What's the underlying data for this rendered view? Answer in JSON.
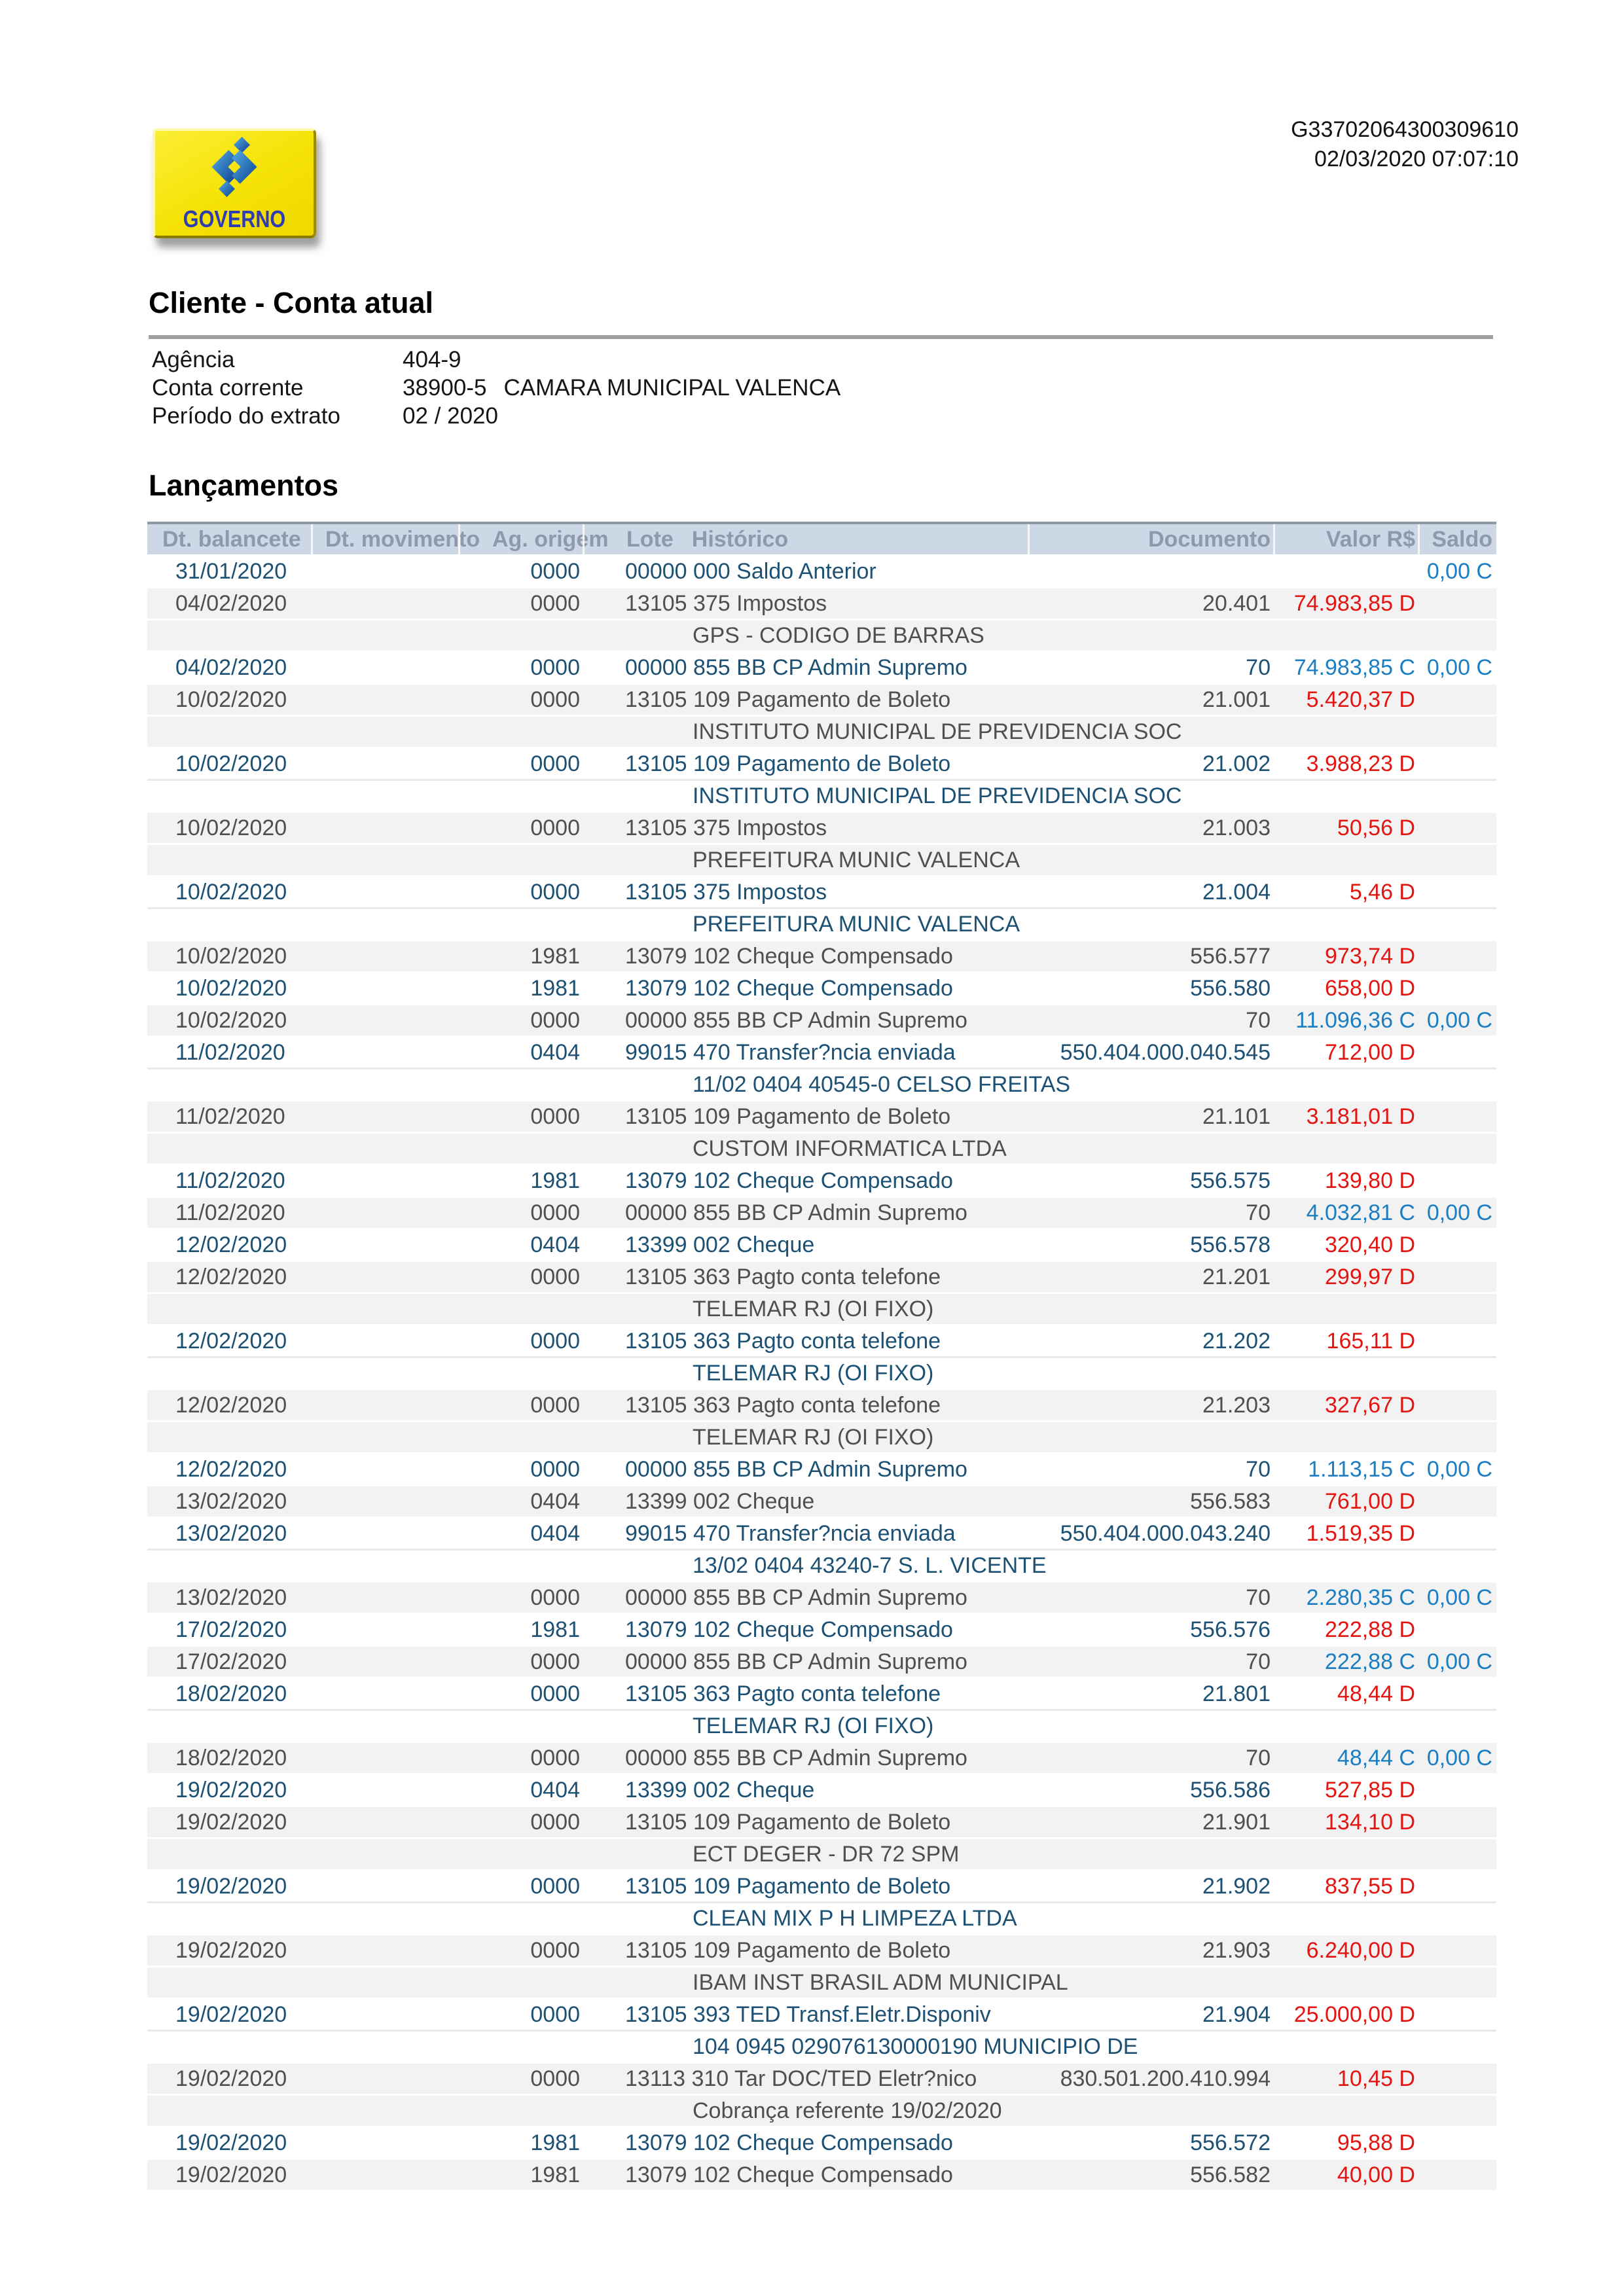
{
  "meta": {
    "protocol": "G33702064300309610",
    "datetime": "02/03/2020 07:07:10"
  },
  "logo": {
    "label": "GOVERNO",
    "box_color": "#f5e204",
    "mark_color_top": "#55aee8",
    "mark_color_bottom": "#0a3f8d",
    "label_color": "#2e3cb2"
  },
  "client": {
    "title": "Cliente - Conta atual",
    "fields": [
      {
        "label": "Agência",
        "value": "404-9"
      },
      {
        "label": "Conta corrente",
        "value": "38900-5",
        "extra": "CAMARA MUNICIPAL VALENCA"
      },
      {
        "label": "Período do extrato",
        "value": "02 / 2020"
      }
    ]
  },
  "sections": {
    "lancamentos": "Lançamentos"
  },
  "colors": {
    "header_bg": "#ccd8e5",
    "header_text": "#8c9aab",
    "row_alt_bg": "#f2f2f2",
    "row_white_text": "#1d5174",
    "row_gray_text": "#4d5052",
    "debit_red": "#e41511",
    "credit_blue": "#1b7ec2"
  },
  "table": {
    "headers": [
      "Dt. balancete",
      "Dt. movimento",
      "Ag. origem",
      "Lote",
      "Histórico",
      "Documento",
      "Valor R$",
      "Saldo"
    ],
    "rows": [
      {
        "type": "txn",
        "bg": "w",
        "dt": "31/01/2020",
        "ag": "0000",
        "hist": "00000 000 Saldo Anterior",
        "doc": "",
        "valor": "",
        "valor_suffix": "",
        "saldo": "0,00",
        "saldo_suffix": "C"
      },
      {
        "type": "txn",
        "bg": "g",
        "dt": "04/02/2020",
        "ag": "0000",
        "hist": "13105 375 Impostos",
        "doc": "20.401",
        "valor": "74.983,85",
        "valor_suffix": "D",
        "saldo": "",
        "saldo_suffix": ""
      },
      {
        "type": "desc",
        "bg": "g",
        "text": "GPS - CODIGO DE BARRAS"
      },
      {
        "type": "txn",
        "bg": "w",
        "dt": "04/02/2020",
        "ag": "0000",
        "hist": "00000 855 BB CP Admin Supremo",
        "doc": "70",
        "valor": "74.983,85",
        "valor_suffix": "C",
        "saldo": "0,00",
        "saldo_suffix": "C"
      },
      {
        "type": "txn",
        "bg": "g",
        "dt": "10/02/2020",
        "ag": "0000",
        "hist": "13105 109 Pagamento de Boleto",
        "doc": "21.001",
        "valor": "5.420,37",
        "valor_suffix": "D",
        "saldo": "",
        "saldo_suffix": ""
      },
      {
        "type": "desc",
        "bg": "g",
        "text": "INSTITUTO MUNICIPAL DE PREVIDENCIA SOC"
      },
      {
        "type": "txn",
        "bg": "w",
        "dt": "10/02/2020",
        "ag": "0000",
        "hist": "13105 109 Pagamento de Boleto",
        "doc": "21.002",
        "valor": "3.988,23",
        "valor_suffix": "D",
        "saldo": "",
        "saldo_suffix": ""
      },
      {
        "type": "desc",
        "bg": "w",
        "text": "INSTITUTO MUNICIPAL DE PREVIDENCIA SOC"
      },
      {
        "type": "txn",
        "bg": "g",
        "dt": "10/02/2020",
        "ag": "0000",
        "hist": "13105 375 Impostos",
        "doc": "21.003",
        "valor": "50,56",
        "valor_suffix": "D",
        "saldo": "",
        "saldo_suffix": ""
      },
      {
        "type": "desc",
        "bg": "g",
        "text": "PREFEITURA MUNIC VALENCA"
      },
      {
        "type": "txn",
        "bg": "w",
        "dt": "10/02/2020",
        "ag": "0000",
        "hist": "13105 375 Impostos",
        "doc": "21.004",
        "valor": "5,46",
        "valor_suffix": "D",
        "saldo": "",
        "saldo_suffix": ""
      },
      {
        "type": "desc",
        "bg": "w",
        "text": "PREFEITURA MUNIC VALENCA"
      },
      {
        "type": "txn",
        "bg": "g",
        "dt": "10/02/2020",
        "ag": "1981",
        "hist": "13079 102 Cheque Compensado",
        "doc": "556.577",
        "valor": "973,74",
        "valor_suffix": "D",
        "saldo": "",
        "saldo_suffix": ""
      },
      {
        "type": "txn",
        "bg": "w",
        "dt": "10/02/2020",
        "ag": "1981",
        "hist": "13079 102 Cheque Compensado",
        "doc": "556.580",
        "valor": "658,00",
        "valor_suffix": "D",
        "saldo": "",
        "saldo_suffix": ""
      },
      {
        "type": "txn",
        "bg": "g",
        "dt": "10/02/2020",
        "ag": "0000",
        "hist": "00000 855 BB CP Admin Supremo",
        "doc": "70",
        "valor": "11.096,36",
        "valor_suffix": "C",
        "saldo": "0,00",
        "saldo_suffix": "C"
      },
      {
        "type": "txn",
        "bg": "w",
        "dt": "11/02/2020",
        "ag": "0404",
        "hist": "99015 470 Transfer?ncia enviada",
        "doc": "550.404.000.040.545",
        "valor": "712,00",
        "valor_suffix": "D",
        "saldo": "",
        "saldo_suffix": ""
      },
      {
        "type": "desc",
        "bg": "w",
        "text": "11/02 0404 40545-0 CELSO FREITAS"
      },
      {
        "type": "txn",
        "bg": "g",
        "dt": "11/02/2020",
        "ag": "0000",
        "hist": "13105 109 Pagamento de Boleto",
        "doc": "21.101",
        "valor": "3.181,01",
        "valor_suffix": "D",
        "saldo": "",
        "saldo_suffix": ""
      },
      {
        "type": "desc",
        "bg": "g",
        "text": "CUSTOM INFORMATICA LTDA"
      },
      {
        "type": "txn",
        "bg": "w",
        "dt": "11/02/2020",
        "ag": "1981",
        "hist": "13079 102 Cheque Compensado",
        "doc": "556.575",
        "valor": "139,80",
        "valor_suffix": "D",
        "saldo": "",
        "saldo_suffix": ""
      },
      {
        "type": "txn",
        "bg": "g",
        "dt": "11/02/2020",
        "ag": "0000",
        "hist": "00000 855 BB CP Admin Supremo",
        "doc": "70",
        "valor": "4.032,81",
        "valor_suffix": "C",
        "saldo": "0,00",
        "saldo_suffix": "C"
      },
      {
        "type": "txn",
        "bg": "w",
        "dt": "12/02/2020",
        "ag": "0404",
        "hist": "13399 002 Cheque",
        "doc": "556.578",
        "valor": "320,40",
        "valor_suffix": "D",
        "saldo": "",
        "saldo_suffix": ""
      },
      {
        "type": "txn",
        "bg": "g",
        "dt": "12/02/2020",
        "ag": "0000",
        "hist": "13105 363 Pagto conta telefone",
        "doc": "21.201",
        "valor": "299,97",
        "valor_suffix": "D",
        "saldo": "",
        "saldo_suffix": ""
      },
      {
        "type": "desc",
        "bg": "g",
        "text": "TELEMAR RJ (OI FIXO)"
      },
      {
        "type": "txn",
        "bg": "w",
        "dt": "12/02/2020",
        "ag": "0000",
        "hist": "13105 363 Pagto conta telefone",
        "doc": "21.202",
        "valor": "165,11",
        "valor_suffix": "D",
        "saldo": "",
        "saldo_suffix": ""
      },
      {
        "type": "desc",
        "bg": "w",
        "text": "TELEMAR RJ (OI FIXO)"
      },
      {
        "type": "txn",
        "bg": "g",
        "dt": "12/02/2020",
        "ag": "0000",
        "hist": "13105 363 Pagto conta telefone",
        "doc": "21.203",
        "valor": "327,67",
        "valor_suffix": "D",
        "saldo": "",
        "saldo_suffix": ""
      },
      {
        "type": "desc",
        "bg": "g",
        "text": "TELEMAR RJ (OI FIXO)"
      },
      {
        "type": "txn",
        "bg": "w",
        "dt": "12/02/2020",
        "ag": "0000",
        "hist": "00000 855 BB CP Admin Supremo",
        "doc": "70",
        "valor": "1.113,15",
        "valor_suffix": "C",
        "saldo": "0,00",
        "saldo_suffix": "C"
      },
      {
        "type": "txn",
        "bg": "g",
        "dt": "13/02/2020",
        "ag": "0404",
        "hist": "13399 002 Cheque",
        "doc": "556.583",
        "valor": "761,00",
        "valor_suffix": "D",
        "saldo": "",
        "saldo_suffix": ""
      },
      {
        "type": "txn",
        "bg": "w",
        "dt": "13/02/2020",
        "ag": "0404",
        "hist": "99015 470 Transfer?ncia enviada",
        "doc": "550.404.000.043.240",
        "valor": "1.519,35",
        "valor_suffix": "D",
        "saldo": "",
        "saldo_suffix": ""
      },
      {
        "type": "desc",
        "bg": "w",
        "text": "13/02 0404 43240-7 S. L. VICENTE"
      },
      {
        "type": "txn",
        "bg": "g",
        "dt": "13/02/2020",
        "ag": "0000",
        "hist": "00000 855 BB CP Admin Supremo",
        "doc": "70",
        "valor": "2.280,35",
        "valor_suffix": "C",
        "saldo": "0,00",
        "saldo_suffix": "C"
      },
      {
        "type": "txn",
        "bg": "w",
        "dt": "17/02/2020",
        "ag": "1981",
        "hist": "13079 102 Cheque Compensado",
        "doc": "556.576",
        "valor": "222,88",
        "valor_suffix": "D",
        "saldo": "",
        "saldo_suffix": ""
      },
      {
        "type": "txn",
        "bg": "g",
        "dt": "17/02/2020",
        "ag": "0000",
        "hist": "00000 855 BB CP Admin Supremo",
        "doc": "70",
        "valor": "222,88",
        "valor_suffix": "C",
        "saldo": "0,00",
        "saldo_suffix": "C"
      },
      {
        "type": "txn",
        "bg": "w",
        "dt": "18/02/2020",
        "ag": "0000",
        "hist": "13105 363 Pagto conta telefone",
        "doc": "21.801",
        "valor": "48,44",
        "valor_suffix": "D",
        "saldo": "",
        "saldo_suffix": ""
      },
      {
        "type": "desc",
        "bg": "w",
        "text": "TELEMAR RJ (OI FIXO)"
      },
      {
        "type": "txn",
        "bg": "g",
        "dt": "18/02/2020",
        "ag": "0000",
        "hist": "00000 855 BB CP Admin Supremo",
        "doc": "70",
        "valor": "48,44",
        "valor_suffix": "C",
        "saldo": "0,00",
        "saldo_suffix": "C"
      },
      {
        "type": "txn",
        "bg": "w",
        "dt": "19/02/2020",
        "ag": "0404",
        "hist": "13399 002 Cheque",
        "doc": "556.586",
        "valor": "527,85",
        "valor_suffix": "D",
        "saldo": "",
        "saldo_suffix": ""
      },
      {
        "type": "txn",
        "bg": "g",
        "dt": "19/02/2020",
        "ag": "0000",
        "hist": "13105 109 Pagamento de Boleto",
        "doc": "21.901",
        "valor": "134,10",
        "valor_suffix": "D",
        "saldo": "",
        "saldo_suffix": ""
      },
      {
        "type": "desc",
        "bg": "g",
        "text": "ECT DEGER - DR 72 SPM"
      },
      {
        "type": "txn",
        "bg": "w",
        "dt": "19/02/2020",
        "ag": "0000",
        "hist": "13105 109 Pagamento de Boleto",
        "doc": "21.902",
        "valor": "837,55",
        "valor_suffix": "D",
        "saldo": "",
        "saldo_suffix": ""
      },
      {
        "type": "desc",
        "bg": "w",
        "text": "CLEAN MIX P H LIMPEZA LTDA"
      },
      {
        "type": "txn",
        "bg": "g",
        "dt": "19/02/2020",
        "ag": "0000",
        "hist": "13105 109 Pagamento de Boleto",
        "doc": "21.903",
        "valor": "6.240,00",
        "valor_suffix": "D",
        "saldo": "",
        "saldo_suffix": ""
      },
      {
        "type": "desc",
        "bg": "g",
        "text": "IBAM INST BRASIL ADM MUNICIPAL"
      },
      {
        "type": "txn",
        "bg": "w",
        "dt": "19/02/2020",
        "ag": "0000",
        "hist": "13105 393 TED Transf.Eletr.Disponiv",
        "doc": "21.904",
        "valor": "25.000,00",
        "valor_suffix": "D",
        "saldo": "",
        "saldo_suffix": ""
      },
      {
        "type": "desc",
        "bg": "w",
        "text": "104 0945 029076130000190 MUNICIPIO DE"
      },
      {
        "type": "txn",
        "bg": "g",
        "dt": "19/02/2020",
        "ag": "0000",
        "hist": "13113 310 Tar DOC/TED Eletr?nico",
        "doc": "830.501.200.410.994",
        "valor": "10,45",
        "valor_suffix": "D",
        "saldo": "",
        "saldo_suffix": ""
      },
      {
        "type": "desc",
        "bg": "g",
        "text": "Cobrança referente 19/02/2020"
      },
      {
        "type": "txn",
        "bg": "w",
        "dt": "19/02/2020",
        "ag": "1981",
        "hist": "13079 102 Cheque Compensado",
        "doc": "556.572",
        "valor": "95,88",
        "valor_suffix": "D",
        "saldo": "",
        "saldo_suffix": ""
      },
      {
        "type": "txn",
        "bg": "g",
        "dt": "19/02/2020",
        "ag": "1981",
        "hist": "13079 102 Cheque Compensado",
        "doc": "556.582",
        "valor": "40,00",
        "valor_suffix": "D",
        "saldo": "",
        "saldo_suffix": ""
      }
    ]
  }
}
